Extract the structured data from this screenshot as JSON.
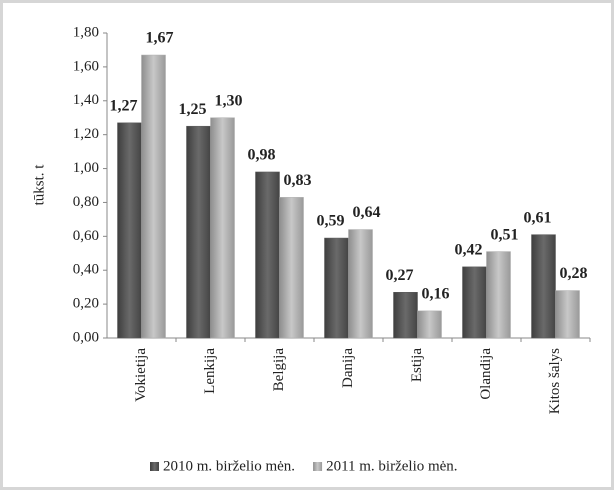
{
  "chart_data": {
    "type": "bar",
    "y_label": "tūkst. t",
    "categories": [
      "Vokietija",
      "Lenkija",
      "Belgija",
      "Danija",
      "Estija",
      "Olandija",
      "Kitos šalys"
    ],
    "series": [
      {
        "name": "2010 m. birželio mėn.",
        "color": "#5a5a5a",
        "values": [
          1.27,
          1.25,
          0.98,
          0.59,
          0.27,
          0.42,
          0.61
        ],
        "value_labels": [
          "1,27",
          "1,25",
          "0,98",
          "0,59",
          "0,27",
          "0,42",
          "0,61"
        ]
      },
      {
        "name": "2011 m. birželio mėn.",
        "color": "#acacac",
        "values": [
          1.67,
          1.3,
          0.83,
          0.64,
          0.16,
          0.51,
          0.28
        ],
        "value_labels": [
          "1,67",
          "1,30",
          "0,83",
          "0,64",
          "0,16",
          "0,51",
          "0,28"
        ]
      }
    ],
    "ylim": [
      0,
      1.8
    ],
    "yticks": [
      {
        "value": 0,
        "label": "0,00"
      },
      {
        "value": 0.2,
        "label": "0,20"
      },
      {
        "value": 0.4,
        "label": "0,40"
      },
      {
        "value": 0.6,
        "label": "0,60"
      },
      {
        "value": 0.8,
        "label": "0,80"
      },
      {
        "value": 1.0,
        "label": "1,00"
      },
      {
        "value": 1.2,
        "label": "1,20"
      },
      {
        "value": 1.4,
        "label": "1,40"
      },
      {
        "value": 1.6,
        "label": "1,60"
      },
      {
        "value": 1.8,
        "label": "1,80"
      }
    ],
    "grid": false,
    "legend": "bottom"
  }
}
